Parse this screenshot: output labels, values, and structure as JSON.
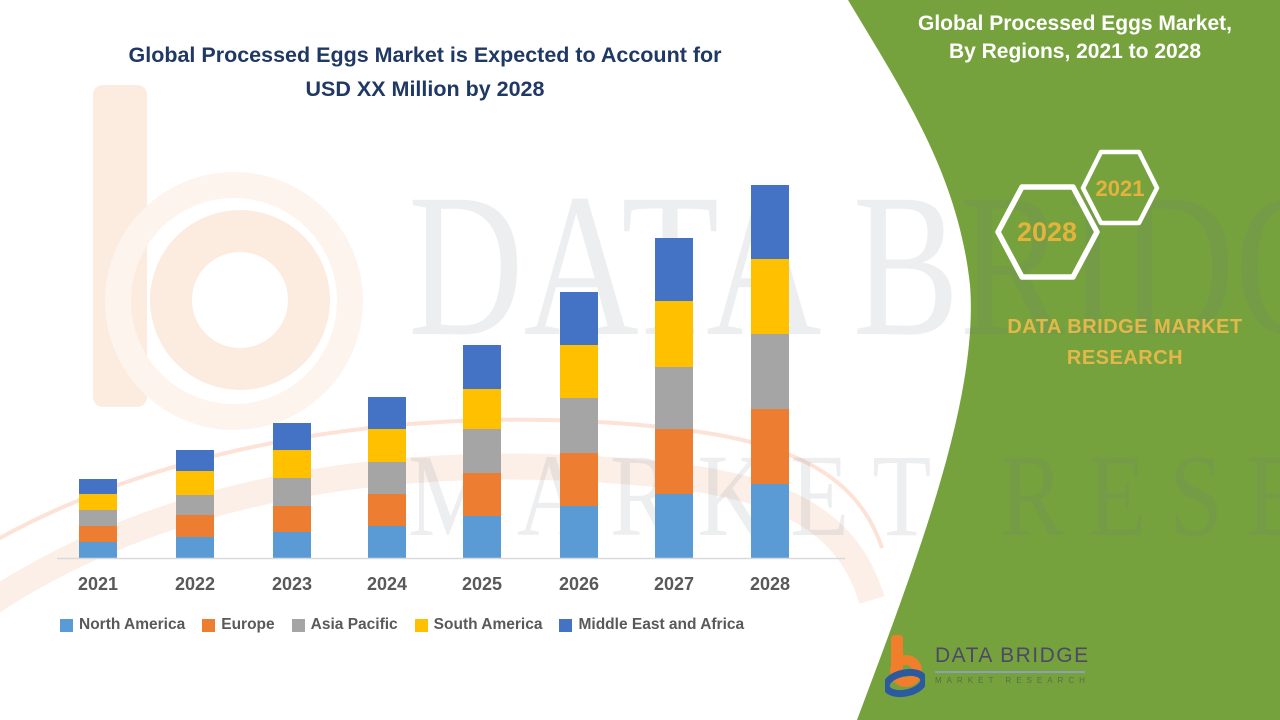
{
  "main_chart": {
    "title_line1": "Global Processed Eggs Market is Expected to Account for",
    "title_line2": "USD XX Million by 2028"
  },
  "side_panel": {
    "title_line1": "Global Processed Eggs Market,",
    "title_line2": "By Regions, 2021 to 2028",
    "hexagon_back_label": "2028",
    "hexagon_front_label": "2021",
    "brand_line1": "DATA BRIDGE MARKET",
    "brand_line2": "RESEARCH"
  },
  "watermark": {
    "row1": "DATA BRIDGE",
    "row2": "MARKET RESEARCH"
  },
  "logo": {
    "name": "DATA BRIDGE",
    "subtitle": "MARKET RESEARCH"
  },
  "colors": {
    "green_panel": "#76A23E",
    "title_text": "#1F3864",
    "gold_text": "#E3B33C",
    "axis_line": "#D9D9D9",
    "tick_text": "#595959",
    "hexagon_stroke": "#FFFFFF"
  },
  "chart_data": {
    "type": "bar",
    "stacked": true,
    "title": "Global Processed Eggs Market, By Regions, 2021 to 2028",
    "units": "USD XX Million (y-axis unlabeled; values are relative index units read from bar heights)",
    "categories": [
      "2021",
      "2022",
      "2023",
      "2024",
      "2025",
      "2026",
      "2027",
      "2028"
    ],
    "series": [
      {
        "name": "North America",
        "color": "#5B9BD5",
        "values": [
          16,
          21,
          26,
          32,
          42,
          52,
          64,
          74
        ]
      },
      {
        "name": "Europe",
        "color": "#ED7D31",
        "values": [
          16,
          22,
          26,
          32,
          43,
          53,
          65,
          75
        ]
      },
      {
        "name": "Asia Pacific",
        "color": "#A5A5A5",
        "values": [
          16,
          20,
          28,
          32,
          44,
          55,
          62,
          75
        ]
      },
      {
        "name": "South America",
        "color": "#FFC000",
        "values": [
          16,
          24,
          28,
          33,
          40,
          53,
          66,
          75
        ]
      },
      {
        "name": "Middle East and Africa",
        "color": "#4472C4",
        "values": [
          15,
          21,
          27,
          32,
          44,
          53,
          63,
          74
        ]
      }
    ],
    "xlabel": "",
    "ylabel": "",
    "ylim": [
      0,
      400
    ],
    "grid": false,
    "y_axis_visible": false,
    "legend_position": "bottom"
  }
}
